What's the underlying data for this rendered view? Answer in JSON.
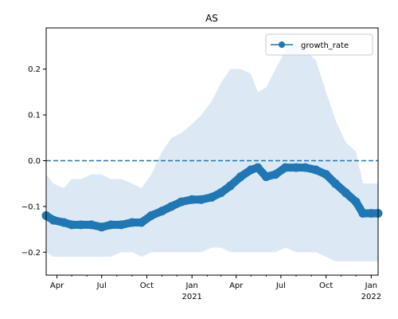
{
  "chart_data": {
    "type": "line",
    "title": "AS",
    "xlabel": "",
    "ylabel": "",
    "x_range": [
      "2020-03-10",
      "2022-01-15"
    ],
    "ylim": [
      -0.25,
      0.29
    ],
    "y_ticks": [
      -0.2,
      -0.1,
      0.0,
      0.1,
      0.2
    ],
    "y_tick_labels": [
      "−0.2",
      "−0.1",
      "0.0",
      "0.1",
      "0.2"
    ],
    "x_ticks": [
      {
        "date": "2020-04-01",
        "label": "Apr",
        "sub": ""
      },
      {
        "date": "2020-07-01",
        "label": "Jul",
        "sub": ""
      },
      {
        "date": "2020-10-01",
        "label": "Oct",
        "sub": ""
      },
      {
        "date": "2021-01-01",
        "label": "Jan",
        "sub": "2021"
      },
      {
        "date": "2021-04-01",
        "label": "Apr",
        "sub": ""
      },
      {
        "date": "2021-07-01",
        "label": "Jul",
        "sub": ""
      },
      {
        "date": "2021-10-01",
        "label": "Oct",
        "sub": ""
      },
      {
        "date": "2022-01-01",
        "label": "Jan",
        "sub": "2022"
      }
    ],
    "reference_line": {
      "y": 0.0,
      "style": "dashed",
      "color": "#1f77b4"
    },
    "legend": {
      "placement": "top-right",
      "entries": [
        "growth_rate"
      ]
    },
    "colors": {
      "series": "#1f77b4",
      "band": "#dce9f5"
    },
    "series": [
      {
        "name": "growth_rate",
        "x": [
          "2020-03-10",
          "2020-03-25",
          "2020-04-15",
          "2020-05-01",
          "2020-05-20",
          "2020-06-10",
          "2020-07-01",
          "2020-07-20",
          "2020-08-10",
          "2020-09-01",
          "2020-09-20",
          "2020-10-10",
          "2020-11-01",
          "2020-11-20",
          "2020-12-10",
          "2021-01-01",
          "2021-01-20",
          "2021-02-10",
          "2021-03-01",
          "2021-03-20",
          "2021-04-10",
          "2021-05-01",
          "2021-05-15",
          "2021-06-01",
          "2021-06-20",
          "2021-07-10",
          "2021-08-01",
          "2021-08-20",
          "2021-09-10",
          "2021-10-01",
          "2021-10-20",
          "2021-11-10",
          "2021-12-01",
          "2021-12-15",
          "2022-01-01",
          "2022-01-15"
        ],
        "values": [
          -0.12,
          -0.13,
          -0.135,
          -0.14,
          -0.14,
          -0.14,
          -0.145,
          -0.14,
          -0.14,
          -0.135,
          -0.135,
          -0.12,
          -0.11,
          -0.1,
          -0.09,
          -0.085,
          -0.085,
          -0.08,
          -0.07,
          -0.055,
          -0.035,
          -0.02,
          -0.015,
          -0.035,
          -0.03,
          -0.015,
          -0.015,
          -0.015,
          -0.02,
          -0.03,
          -0.05,
          -0.07,
          -0.09,
          -0.115,
          -0.115,
          -0.115
        ]
      }
    ],
    "band": {
      "name": "confidence interval",
      "x": [
        "2020-03-10",
        "2020-03-25",
        "2020-04-15",
        "2020-05-01",
        "2020-05-20",
        "2020-06-10",
        "2020-07-01",
        "2020-07-20",
        "2020-08-10",
        "2020-09-01",
        "2020-09-20",
        "2020-10-10",
        "2020-11-01",
        "2020-11-20",
        "2020-12-10",
        "2021-01-01",
        "2021-01-20",
        "2021-02-10",
        "2021-03-01",
        "2021-03-20",
        "2021-04-10",
        "2021-05-01",
        "2021-05-15",
        "2021-06-01",
        "2021-06-20",
        "2021-07-10",
        "2021-08-01",
        "2021-08-20",
        "2021-09-10",
        "2021-10-01",
        "2021-10-20",
        "2021-11-10",
        "2021-12-01",
        "2021-12-15",
        "2022-01-01",
        "2022-01-15"
      ],
      "upper": [
        -0.03,
        -0.05,
        -0.06,
        -0.04,
        -0.04,
        -0.03,
        -0.03,
        -0.04,
        -0.04,
        -0.05,
        -0.06,
        -0.03,
        0.02,
        0.05,
        0.06,
        0.08,
        0.1,
        0.13,
        0.17,
        0.2,
        0.2,
        0.19,
        0.15,
        0.16,
        0.2,
        0.24,
        0.26,
        0.24,
        0.22,
        0.15,
        0.09,
        0.04,
        0.02,
        -0.05,
        -0.05,
        -0.05
      ],
      "lower": [
        -0.2,
        -0.21,
        -0.21,
        -0.21,
        -0.21,
        -0.21,
        -0.21,
        -0.21,
        -0.2,
        -0.2,
        -0.21,
        -0.2,
        -0.2,
        -0.2,
        -0.2,
        -0.2,
        -0.2,
        -0.19,
        -0.19,
        -0.2,
        -0.2,
        -0.2,
        -0.2,
        -0.2,
        -0.2,
        -0.19,
        -0.2,
        -0.2,
        -0.2,
        -0.21,
        -0.22,
        -0.22,
        -0.22,
        -0.22,
        -0.22,
        -0.22
      ]
    }
  }
}
